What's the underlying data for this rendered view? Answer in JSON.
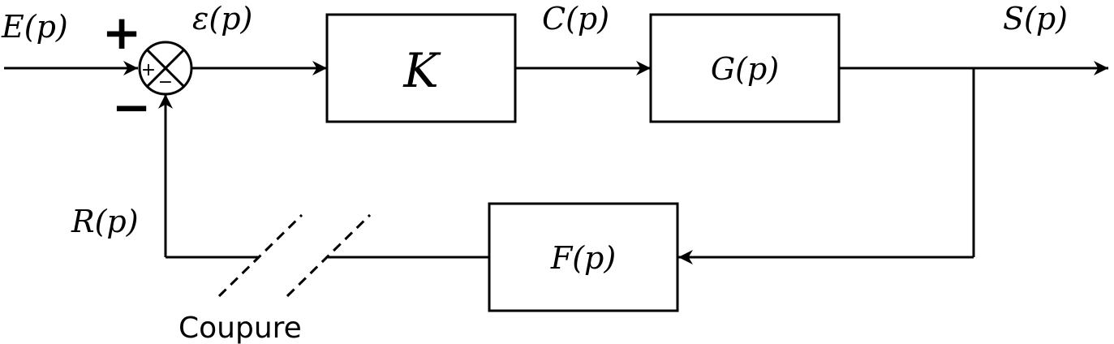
{
  "signals": {
    "input": "E(p)",
    "error": "ε(p)",
    "command": "C(p)",
    "output": "S(p)",
    "feedback": "R(p)"
  },
  "blocks": {
    "gain": "K",
    "plant": "G(p)",
    "feedback": "F(p)"
  },
  "comparator": {
    "plus_sign": "+",
    "minus_sign": "−",
    "inner_plus": "+",
    "inner_minus": "−"
  },
  "annotation": {
    "cut": "Coupure"
  }
}
